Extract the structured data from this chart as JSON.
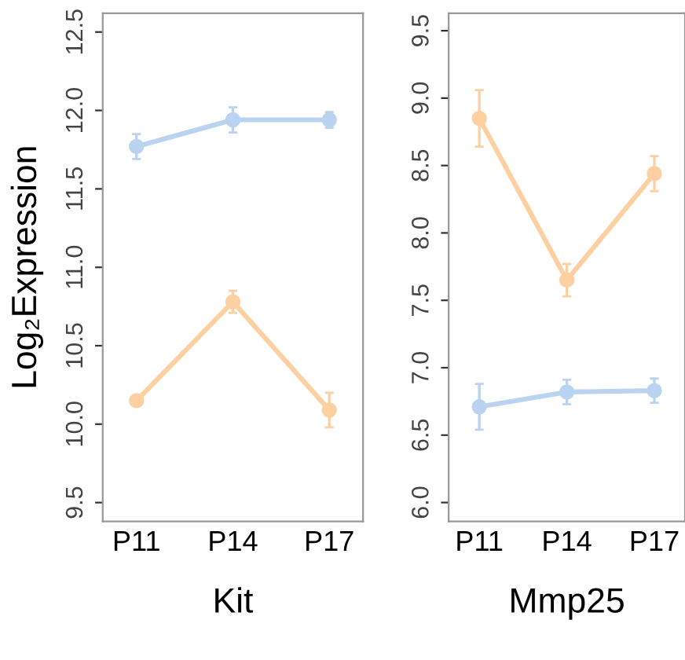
{
  "chart_data": [
    {
      "type": "line",
      "categories": [
        "P11",
        "P14",
        "P17"
      ],
      "xlabel": "Kit",
      "ylabel": "Log₂Expression",
      "ylim": [
        9.38,
        12.62
      ],
      "yticks": [
        9.5,
        {
          "value": 10,
          "label": "10.0"
        },
        10.5,
        {
          "value": 11,
          "label": "11.0"
        },
        11.5,
        {
          "value": 12,
          "label": "12.0"
        },
        12.5
      ],
      "marker": "circle",
      "line_style": "solid",
      "series": [
        {
          "color": "#b9d3f0",
          "values": [
            11.77,
            11.94,
            11.94
          ],
          "errors": [
            0.08,
            0.08,
            0.05
          ]
        },
        {
          "color": "#fdd0a2",
          "values": [
            10.15,
            10.78,
            10.09
          ],
          "errors": [
            null,
            0.07,
            0.11
          ]
        }
      ]
    },
    {
      "type": "line",
      "categories": [
        "P11",
        "P14",
        "P17"
      ],
      "xlabel": "Mmp25",
      "ylim": [
        5.86,
        9.63
      ],
      "yticks": [
        {
          "value": 6,
          "label": "6.0"
        },
        6.5,
        {
          "value": 7,
          "label": "7.0"
        },
        7.5,
        {
          "value": 8,
          "label": "8.0"
        },
        8.5,
        {
          "value": 9,
          "label": "9.0"
        },
        9.5
      ],
      "marker": "circle",
      "line_style": "solid",
      "series": [
        {
          "color": "#fdd0a2",
          "values": [
            8.85,
            7.65,
            8.44
          ],
          "errors": [
            0.21,
            0.12,
            0.13
          ]
        },
        {
          "color": "#b9d3f0",
          "values": [
            6.71,
            6.82,
            6.83
          ],
          "errors": [
            0.17,
            0.09,
            0.09
          ]
        }
      ]
    }
  ]
}
